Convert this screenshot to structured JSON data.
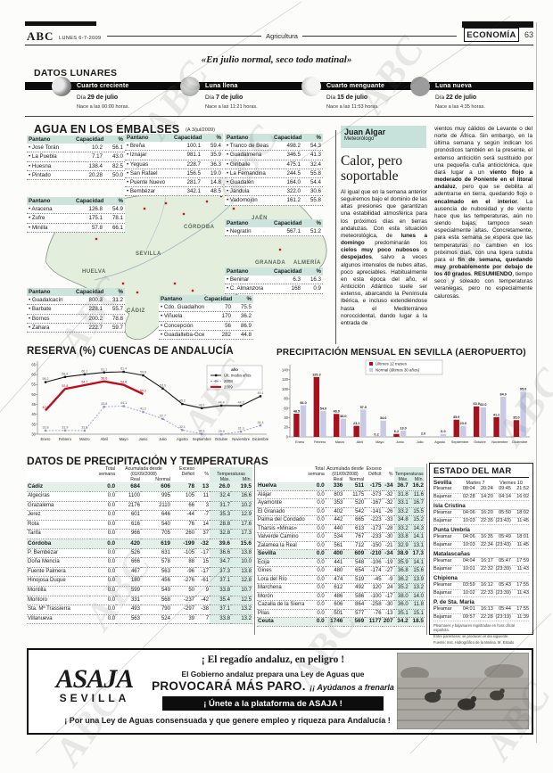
{
  "page": {
    "brand": "ABC",
    "date": "LUNES 6-7-2009",
    "section": "Agricultura",
    "right_tag": "ECONOMÍA",
    "page_number": "63",
    "quote": "«En julio normal, seco todo matinal»",
    "watermark": "ABC"
  },
  "lunar": {
    "title": "DATOS LUNARES",
    "dia_label": "Día",
    "phases": [
      {
        "name": "Cuarto creciente",
        "dia": "29 de julio",
        "nace": "Nace a las 00:00 horas."
      },
      {
        "name": "Luna llena",
        "dia": "7 de julio",
        "nace": "Nace a las 11:21 horas."
      },
      {
        "name": "Cuarto menguante",
        "dia": "15 de julio",
        "nace": "Nace a las 11:53 horas."
      },
      {
        "name": "Luna nueva",
        "dia": "22 de julio",
        "nace": "Nace a las 4:35 horas."
      }
    ]
  },
  "embalses": {
    "title": "AGUA EN LOS EMBALSES",
    "note": "(A 3/jul/2009)",
    "col_headers": [
      "Pantano",
      "Capacidad",
      "%"
    ],
    "tables": [
      {
        "rows": [
          [
            "José Torán",
            "10.2",
            "56.1"
          ],
          [
            "La Puebla",
            "7.17",
            "43.0"
          ],
          [
            "Huesna",
            "138.4",
            "82.5"
          ],
          [
            "Pintado",
            "20.28",
            "50.0"
          ]
        ]
      },
      {
        "rows": [
          [
            "Aracena",
            "126.8",
            "54.9"
          ],
          [
            "Zufre",
            "175.1",
            "78.1"
          ],
          [
            "Minilla",
            "57.8",
            "66.1"
          ]
        ]
      },
      {
        "rows": [
          [
            "Guadalcacín",
            "800.3",
            "31.2"
          ],
          [
            "Barbate",
            "228.1",
            "55.7"
          ],
          [
            "Bornos",
            "200.2",
            "78.8"
          ],
          [
            "Zahara",
            "222.7",
            "59.7"
          ]
        ]
      },
      {
        "rows": [
          [
            "Breña",
            "100.1",
            "59.4"
          ],
          [
            "Iznájar",
            "981.1",
            "35.9"
          ],
          [
            "Yeguas",
            "228.7",
            "36.3"
          ],
          [
            "San Rafael",
            "156.5",
            "19.0"
          ],
          [
            "Puente Nuevo",
            "281.7",
            "14.8"
          ],
          [
            "Bembézar",
            "342.1",
            "48.5"
          ]
        ]
      },
      {
        "rows": [
          [
            "Tranco de Beas",
            "498.2",
            "54.3"
          ],
          [
            "Guadalmena",
            "346.5",
            "41.3"
          ],
          [
            "Giribaile",
            "475.1",
            "32.4"
          ],
          [
            "La Fernandina",
            "244.5",
            "55.8"
          ],
          [
            "Guadalén",
            "164.0",
            "54.4"
          ],
          [
            "Jándula",
            "322.0",
            "30.6"
          ],
          [
            "Vadomojón",
            "161.2",
            "55.8"
          ]
        ]
      },
      {
        "rows": [
          [
            "Negratín",
            "567.1",
            "51.2"
          ]
        ]
      },
      {
        "rows": [
          [
            "Beninar",
            "6.3",
            "16.3"
          ],
          [
            "C. Almanzora",
            "168",
            "0.9"
          ]
        ]
      },
      {
        "rows": [
          [
            "Cdo. Guadalhorce",
            "70",
            "75.5"
          ],
          [
            "Viñuela",
            "170",
            "36.2"
          ],
          [
            "Concepción",
            "56",
            "86.9"
          ],
          [
            "Guadalteba-Gce",
            "282",
            "44.8"
          ]
        ]
      }
    ]
  },
  "map": {
    "provinces": [
      "HUELVA",
      "SEVILLA",
      "CÓRDOBA",
      "JAÉN",
      "GRANADA",
      "ALMERÍA",
      "MÁLAGA",
      "CÁDIZ"
    ]
  },
  "article": {
    "author": "Juan Algar",
    "role": "Meteorólogo",
    "headline": "Calor, pero soportable",
    "col1": [
      {
        "b": false,
        "t": "Al igual que en la semana anterior seguiremos bajo el dominio de las altas presiones que garantizan una estabilidad atmosférica para los próximos días en tierras andaluzas. Con esta situación meteorológica, de "
      },
      {
        "b": true,
        "t": "lunes a domingo"
      },
      {
        "b": false,
        "t": " predominarán los "
      },
      {
        "b": true,
        "t": "cielos muy poco nubosos o despejados"
      },
      {
        "b": false,
        "t": ", salvo a veces algunos intervalos de nubes altas, poco apreciables. Habitualmente en esta época del año, el Anticiclón Atlántico suele ser extenso, abarcando la Península Ibérica, e incluso extendiéndose hasta el Mediterráneo noroccidental, dando lugar a la entrada de"
      }
    ],
    "col2": [
      {
        "b": false,
        "t": "vientos muy cálidos de Levante o del norte de África. Sin embargo, en la última semana y según indican los pronósticos también en la presente, el extenso anticiclón será sustituido por una pequeña cuña anticiclónica, que dará lugar a un "
      },
      {
        "b": true,
        "t": "viento flojo a moderado de Poniente en el litoral andaluz"
      },
      {
        "b": false,
        "t": ", pero que se debilita al adentrarse en tierra, quedando flojo o "
      },
      {
        "b": true,
        "t": "encalmado en el interior"
      },
      {
        "b": false,
        "t": ". La ausencia de nubosidad y de viento hace que las temperaturas, aún no siendo bajas, tampoco sean especialmente altas. Concretamente, para esta semana se espera que las temperaturas no cambien en los próximos días, con una ligera subida para el "
      },
      {
        "b": true,
        "t": "fin de semana, quedando muy probablemente por debajo de los 40 grados"
      },
      {
        "b": false,
        "t": ". "
      },
      {
        "b": true,
        "t": "RESUMIENDO"
      },
      {
        "b": false,
        "t": ", tiempo seco y soleado con temperaturas veraniegas, pero no especialmente calurosas."
      }
    ]
  },
  "chart_data": [
    {
      "type": "line",
      "title": "RESERVA (%) CUENCAS DE ANDALUCÍA",
      "categories": [
        "Enero",
        "Febrero",
        "Marzo",
        "Abril",
        "Mayo",
        "Junio",
        "Julio",
        "Agosto",
        "Septiembre",
        "Octubre",
        "Noviembre",
        "Diciembre"
      ],
      "ylim": [
        30,
        65
      ],
      "yticks": [
        30,
        35,
        40,
        45,
        50,
        55,
        60,
        65
      ],
      "legend_title": "año",
      "legend_position": "top-right",
      "grid": false,
      "series": [
        {
          "name": "Últ. media años",
          "color": "#1a1a1a",
          "style": "solid",
          "values": [
            56.2,
            58.8,
            60.1,
            61.1,
            61.4,
            59.6,
            53.0,
            45.2,
            43.1,
            44.4,
            44.3,
            49.1
          ]
        },
        {
          "name": "2008",
          "color": "#8f95c8",
          "style": "dashed",
          "values": [
            31.8,
            31.9,
            31.8,
            43.8,
            44.1,
            41.2,
            37.7,
            32.1,
            30.1,
            29.9,
            31.3,
            34.4
          ]
        },
        {
          "name": "2009",
          "color": "#c00d1e",
          "style": "solid-thick",
          "values": [
            42.0,
            52.8,
            54.7,
            56.6,
            54.8,
            50.2
          ]
        }
      ]
    },
    {
      "type": "bar",
      "title": "PRECIPITACIÓN MENSUAL EN SEVILLA (AEROPUERTO)",
      "categories": [
        "Enero",
        "Febrero",
        "Marzo",
        "Abril",
        "Mayo",
        "Junio",
        "Julio",
        "Agosto",
        "Septiembre",
        "Octubre",
        "Noviembre",
        "Diciembre"
      ],
      "ylim": [
        0,
        140
      ],
      "yticks": [
        0,
        20,
        40,
        60,
        80,
        100,
        120,
        140
      ],
      "legend_position": "top-center",
      "grid": false,
      "series": [
        {
          "name": "Últimos 12 meses",
          "color": "#a8101b",
          "values": [
            48.5,
            125.3,
            48.0,
            23.1,
            0.2,
            6.2,
            0,
            0,
            35.9,
            63.9,
            41.2,
            35.0
          ]
        },
        {
          "name": "Normal (últimos 30 años)",
          "color": "#c7c9e5",
          "values": [
            66.0,
            54.0,
            38.0,
            57.0,
            34.0,
            13.0,
            2.0,
            6.0,
            23.0,
            62.0,
            84.0,
            95.0
          ]
        }
      ]
    }
  ],
  "precip": {
    "title": "DATOS DE PRECIPITACIÓN Y TEMPERATURAS",
    "headers": {
      "total": [
        "Total",
        "semana"
      ],
      "acum": [
        "Acumulada desde",
        "(01/09/2008)"
      ],
      "real": "Real",
      "normal": "Normal",
      "exceso": [
        "Exceso",
        "Déficit"
      ],
      "pct": "%",
      "temps": "Temperaturas",
      "max": "Máx.",
      "min": "Mín."
    },
    "left_rows": [
      {
        "name": "Cádiz",
        "bold": true,
        "v": [
          "0.0",
          "684",
          "606",
          "78",
          "13",
          "26.0",
          "19.5"
        ]
      },
      {
        "name": "Algeciras",
        "bold": false,
        "v": [
          "0.0",
          "1100",
          "995",
          "105",
          "11",
          "32.4",
          "16.6"
        ]
      },
      {
        "name": "Grazalema",
        "bold": false,
        "v": [
          "0.0",
          "2176",
          "2110",
          "66",
          "3",
          "31.7",
          "10.2"
        ]
      },
      {
        "name": "Jerez",
        "bold": false,
        "v": [
          "0.0",
          "601",
          "646",
          "-44",
          "-7",
          "35.3",
          "12.9"
        ]
      },
      {
        "name": "Rota",
        "bold": false,
        "v": [
          "0.0",
          "616",
          "540",
          "76",
          "14",
          "28.8",
          "17.6"
        ]
      },
      {
        "name": "Tarifa",
        "bold": false,
        "v": [
          "0.0",
          "966",
          "705",
          "260",
          "37",
          "32.8",
          "17.3"
        ]
      },
      {
        "name": "Córdoba",
        "bold": true,
        "v": [
          "0.0",
          "420",
          "619",
          "-199",
          "-32",
          "39.6",
          "15.6"
        ]
      },
      {
        "name": "P. Bembézar",
        "bold": false,
        "v": [
          "0.0",
          "526",
          "631",
          "-105",
          "-17",
          "36.6",
          "13.8"
        ]
      },
      {
        "name": "Doña Mencía",
        "bold": false,
        "v": [
          "0.0",
          "666",
          "578",
          "88",
          "15",
          "34.7",
          "10.0"
        ]
      },
      {
        "name": "Fuente Palmera",
        "bold": false,
        "v": [
          "0.0",
          "467",
          "563",
          "-96",
          "-17",
          "37.3",
          "13.8"
        ]
      },
      {
        "name": "Hinojosa Duque",
        "bold": false,
        "v": [
          "0.0",
          "180",
          "456",
          "-276",
          "-61",
          "37.1",
          "12.8"
        ]
      },
      {
        "name": "Montilla",
        "bold": false,
        "v": [
          "0.0",
          "599",
          "549",
          "50",
          "9",
          "33.8",
          "10.7"
        ]
      },
      {
        "name": "Montoro",
        "bold": false,
        "v": [
          "0.0",
          "331",
          "568",
          "-237",
          "-42",
          "35.4",
          "12.5"
        ]
      },
      {
        "name": "Sta. Mª Trassierra",
        "bold": false,
        "v": [
          "0.0",
          "493",
          "790",
          "-297",
          "-38",
          "37.1",
          "13.2"
        ]
      },
      {
        "name": "Villanueva",
        "bold": false,
        "v": [
          "0.0",
          "563",
          "524",
          "39",
          "7",
          "33.8",
          "13.2"
        ]
      }
    ],
    "right_rows": [
      {
        "name": "Huelva",
        "bold": true,
        "v": [
          "0.0",
          "336",
          "511",
          "-175",
          "-34",
          "36.7",
          "16.2"
        ]
      },
      {
        "name": "Alájar",
        "bold": false,
        "v": [
          "0.0",
          "803",
          "1175",
          "-373",
          "-32",
          "31.8",
          "11.6"
        ]
      },
      {
        "name": "Ayamonte",
        "bold": false,
        "v": [
          "0.0",
          "353",
          "520",
          "-167",
          "-32",
          "33.1",
          "16.7"
        ]
      },
      {
        "name": "El Granado",
        "bold": false,
        "v": [
          "0.0",
          "402",
          "542",
          "-141",
          "-26",
          "33.2",
          "15.5"
        ]
      },
      {
        "name": "Palma del Condado",
        "bold": false,
        "v": [
          "0.0",
          "442",
          "665",
          "-223",
          "-33",
          "34.8",
          "15.2"
        ]
      },
      {
        "name": "Tharsis «Minas»",
        "bold": false,
        "v": [
          "0.0",
          "440",
          "613",
          "-173",
          "-28",
          "33.2",
          "14.3"
        ]
      },
      {
        "name": "Valverde Camino",
        "bold": false,
        "v": [
          "0.0",
          "534",
          "767",
          "-233",
          "-30",
          "33.8",
          "14.1"
        ]
      },
      {
        "name": "Zalamea la Real",
        "bold": false,
        "v": [
          "0.0",
          "561",
          "712",
          "-150",
          "-21",
          "32.9",
          "13.1"
        ]
      },
      {
        "name": "Sevilla",
        "bold": true,
        "v": [
          "0.0",
          "400",
          "609",
          "-210",
          "-34",
          "38.9",
          "17.3"
        ]
      },
      {
        "name": "Écija",
        "bold": false,
        "v": [
          "0.0",
          "441",
          "548",
          "-106",
          "-19",
          "35.9",
          "14.1"
        ]
      },
      {
        "name": "Gines",
        "bold": false,
        "v": [
          "0.0",
          "480",
          "654",
          "-174",
          "-27",
          "36.8",
          "15.6"
        ]
      },
      {
        "name": "Lora del Río",
        "bold": false,
        "v": [
          "0.0",
          "474",
          "519",
          "-45",
          "-9",
          "36.2",
          "13.9"
        ]
      },
      {
        "name": "Marchena",
        "bold": false,
        "v": [
          "0.0",
          "612",
          "492",
          "120",
          "24",
          "35.2",
          "13.2"
        ]
      },
      {
        "name": "Morón",
        "bold": false,
        "v": [
          "0.0",
          "486",
          "586",
          "-100",
          "-17",
          "38.0",
          "14.0"
        ]
      },
      {
        "name": "Cazalla de la Sierra",
        "bold": false,
        "v": [
          "0.0",
          "606",
          "864",
          "-258",
          "-30",
          "36.0",
          "11.8"
        ]
      },
      {
        "name": "Pilas",
        "bold": false,
        "v": [
          "0.0",
          "501",
          "577",
          "-76",
          "-13",
          "35.1",
          "15.1"
        ]
      },
      {
        "name": "Ceuta",
        "bold": true,
        "v": [
          "0.0",
          "1746",
          "569",
          "1177",
          "207",
          "34.2",
          "18.5"
        ]
      }
    ]
  },
  "sea": {
    "title": "ESTADO DEL MAR",
    "columns": [
      "Martes 7",
      "Viernes 10"
    ],
    "row_labels": [
      "Pleamar",
      "Bajamar"
    ],
    "locations": [
      {
        "name": "Sevilla",
        "pleamar": [
          "08:04",
          "20:24",
          "09:45",
          "21:52"
        ],
        "bajamar": [
          "02:28",
          "14:20",
          "04:14",
          "16:02"
        ]
      },
      {
        "name": "Isla Cristina",
        "pleamar": [
          "04:06",
          "16:20",
          "05:50",
          "18:02"
        ],
        "bajamar": [
          "10:03",
          "22:35",
          "(23:43)",
          "11:45"
        ]
      },
      {
        "name": "Punta Umbría",
        "pleamar": [
          "04:06",
          "16:35",
          "05:49",
          "18:01"
        ],
        "bajamar": [
          "10:03",
          "22:34",
          "(23:43)",
          "11:45"
        ]
      },
      {
        "name": "Matalascañas",
        "pleamar": [
          "04:04",
          "16:17",
          "05:47",
          "17:59"
        ],
        "bajamar": [
          "10:01",
          "22:32",
          "(23:39)",
          "11:43"
        ]
      },
      {
        "name": "Chipiona",
        "pleamar": [
          "03:59",
          "16:12",
          "05:43",
          "17:55"
        ],
        "bajamar": [
          "10:02",
          "22:33",
          "(23:39)",
          "11:43"
        ]
      },
      {
        "name": "P. de Sta. María",
        "pleamar": [
          "04:01",
          "16:13",
          "05:44",
          "17:55"
        ],
        "bajamar": [
          "09:57",
          "22:28",
          "(23:19)",
          "11:39"
        ]
      }
    ],
    "footnotes": [
      "Pleamares y bajamares registradas en hora oficial española.",
      "Entre paréntesis: se producen el día siguiente.",
      "Fuente: Inst. Hidrográfico de la Marina. M. Estado"
    ]
  },
  "ad": {
    "logo_main": "ASAJA",
    "logo_sub": "SEVILLA",
    "line1": "¡ El regadío andaluz, en peligro !",
    "line2": "El Gobierno andaluz prepara una Ley de Aguas que",
    "line3_big": "PROVOCARÁ MÁS PARO.",
    "line3_rest": "¡¡ Ayúdanos a frenarla !!",
    "bar": "¡ Únete a la plataforma de ASAJA !",
    "line5": "¡ Por una Ley de Aguas consensuada y que genere empleo y riqueza para Andalucía !"
  }
}
